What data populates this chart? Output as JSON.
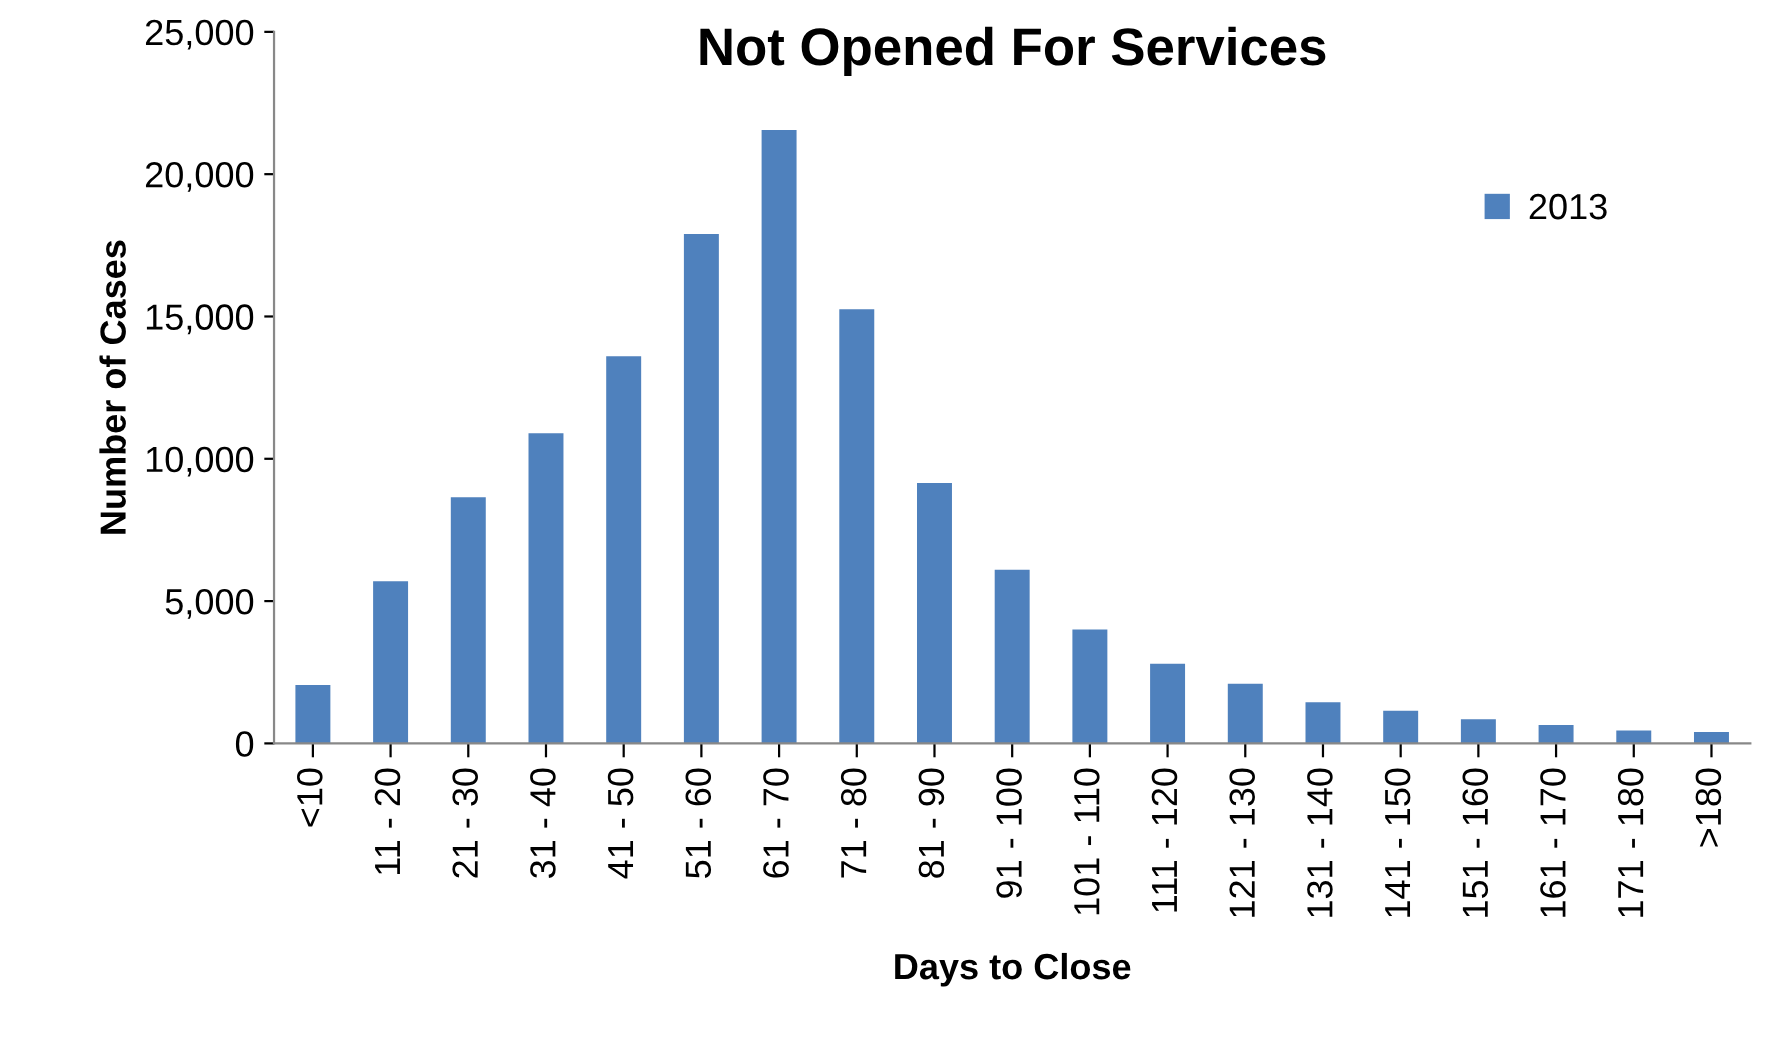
{
  "chart_data": {
    "type": "bar",
    "title": "Not Opened For Services",
    "xlabel": "Days to Close",
    "ylabel": "Number of Cases",
    "categories": [
      "<10",
      "11 - 20",
      "21 - 30",
      "31 - 40",
      "41 - 50",
      "51 - 60",
      "61 - 70",
      "71 - 80",
      "81 - 90",
      "91 - 100",
      "101 - 110",
      "111 - 120",
      "121 - 130",
      "131 - 140",
      "141 - 150",
      "151 - 160",
      "161 - 170",
      "171 - 180",
      ">180"
    ],
    "series": [
      {
        "name": "2013",
        "color": "#4f81bd",
        "values": [
          2050,
          5700,
          8650,
          10900,
          13600,
          17900,
          21550,
          15250,
          9150,
          6100,
          4000,
          2800,
          2100,
          1450,
          1150,
          850,
          650,
          450,
          400
        ]
      }
    ],
    "ylim": [
      0,
      25000
    ],
    "yticks": [
      {
        "value": 0,
        "label": "0"
      },
      {
        "value": 5000,
        "label": "5,000"
      },
      {
        "value": 10000,
        "label": "10,000"
      },
      {
        "value": 15000,
        "label": "15,000"
      },
      {
        "value": 20000,
        "label": "20,000"
      },
      {
        "value": 25000,
        "label": "25,000"
      }
    ],
    "grid": false,
    "legend": "right"
  }
}
